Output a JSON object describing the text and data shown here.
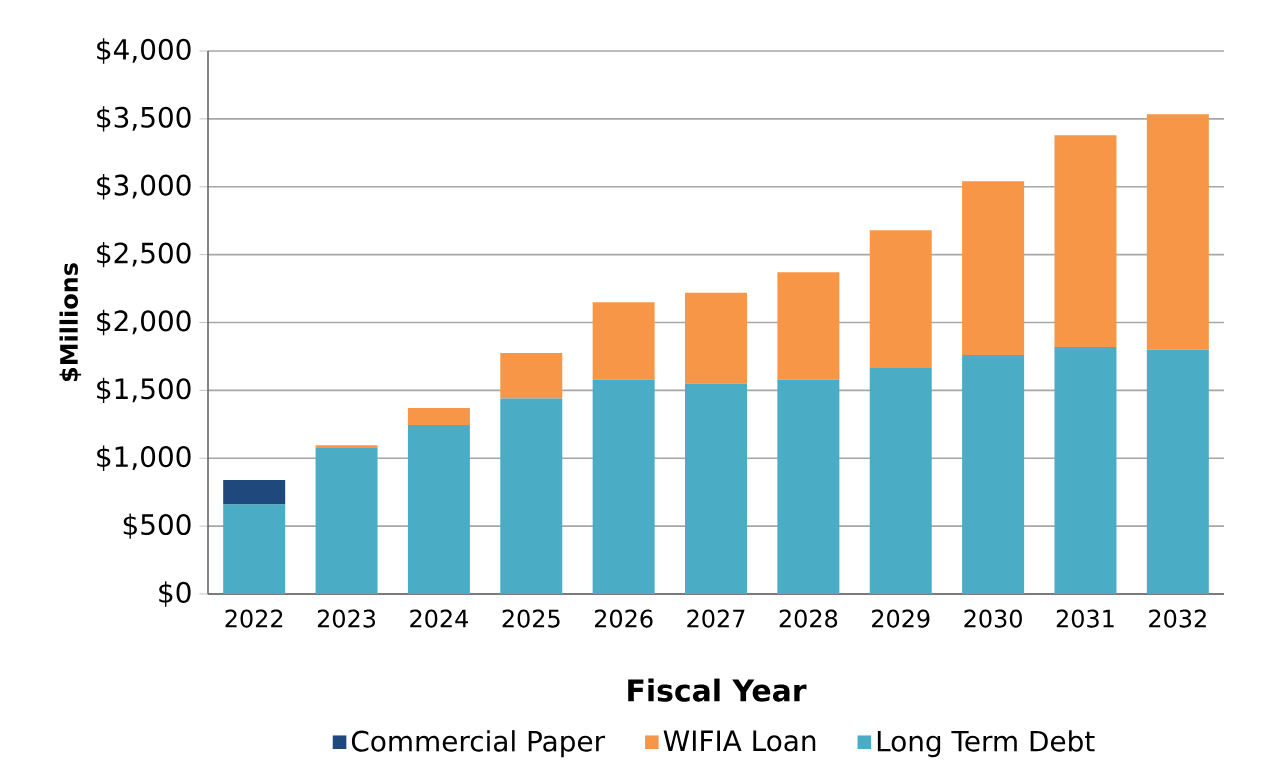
{
  "chart_data": {
    "type": "bar",
    "stacked": true,
    "xlabel": "Fiscal Year",
    "ylabel": "$Millions",
    "categories": [
      "2022",
      "2023",
      "2024",
      "2025",
      "2026",
      "2027",
      "2028",
      "2029",
      "2030",
      "2031",
      "2032"
    ],
    "series": [
      {
        "name": "Long Term Debt",
        "color": "#4bacc6",
        "values": [
          660,
          1075,
          1245,
          1440,
          1580,
          1550,
          1580,
          1665,
          1760,
          1820,
          1800
        ]
      },
      {
        "name": "WIFIA Loan",
        "color": "#f79646",
        "values": [
          null,
          20,
          125,
          335,
          570,
          670,
          790,
          1015,
          1280,
          1560,
          1735
        ]
      },
      {
        "name": "Commercial Paper",
        "color": "#1f497d",
        "values": [
          180,
          null,
          null,
          null,
          null,
          null,
          null,
          null,
          null,
          null,
          null
        ]
      }
    ],
    "ylim": [
      0,
      4000
    ],
    "yticks": [
      {
        "value": 0,
        "label": "$0"
      },
      {
        "value": 500,
        "label": "$500"
      },
      {
        "value": 1000,
        "label": "$1,000"
      },
      {
        "value": 1500,
        "label": "$1,500"
      },
      {
        "value": 2000,
        "label": "$2,000"
      },
      {
        "value": 2500,
        "label": "$2,500"
      },
      {
        "value": 3000,
        "label": "$3,000"
      },
      {
        "value": 3500,
        "label": "$3,500"
      },
      {
        "value": 4000,
        "label": "$4,000"
      }
    ],
    "grid": "y",
    "legend": "bottom"
  }
}
